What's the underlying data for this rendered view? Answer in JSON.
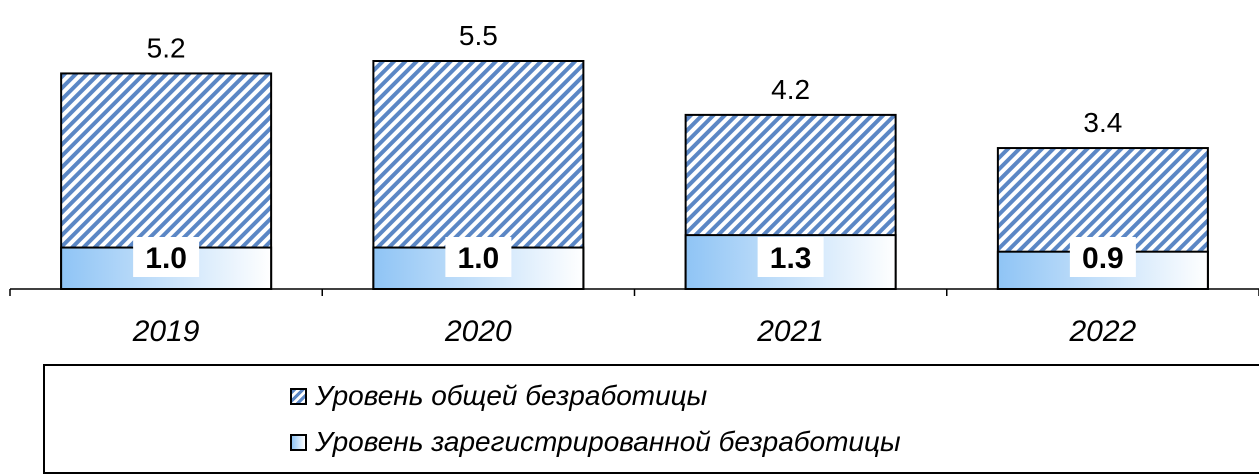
{
  "chart_data": {
    "type": "bar",
    "stacked": "overlay",
    "categories": [
      "2019",
      "2020",
      "2021",
      "2022"
    ],
    "series": [
      {
        "name": "Уровень общей безработицы",
        "values": [
          5.2,
          5.5,
          4.2,
          3.4
        ],
        "labels": [
          "5.2",
          "5.5",
          "4.2",
          "3.4"
        ]
      },
      {
        "name": "Уровень зарегистрированной безработицы",
        "values": [
          1.0,
          1.0,
          1.3,
          0.9
        ],
        "labels": [
          "1.0",
          "1.0",
          "1.3",
          "0.9"
        ]
      }
    ],
    "ylim": [
      0,
      5.5
    ],
    "legend_position": "bottom"
  },
  "colors": {
    "hatch": "#5b87c5",
    "gradient_start": "#8fc4f5",
    "gradient_end": "#ffffff",
    "outline": "#000000"
  },
  "legend": {
    "items": [
      {
        "label": "Уровень общей безработицы",
        "swatch": "hatched-square-icon"
      },
      {
        "label": "Уровень зарегистрированной безработицы",
        "swatch": "gradient-square-icon"
      }
    ]
  }
}
